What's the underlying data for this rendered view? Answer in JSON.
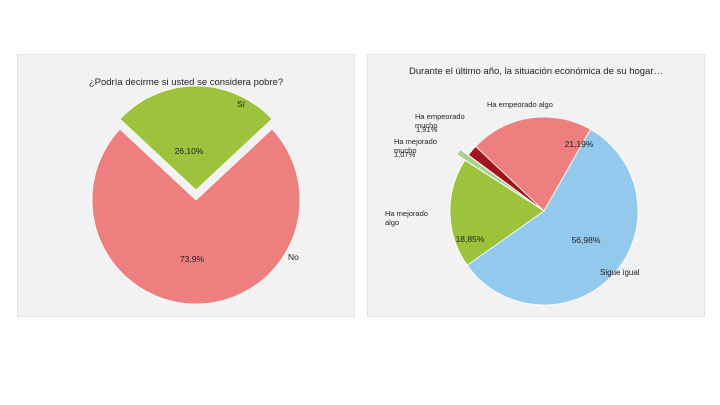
{
  "colors": {
    "panel_bg": "#f2f2f2",
    "green": "#9dc23c",
    "pink": "#ee7f7f",
    "blue": "#92c9ec",
    "dark_red": "#a3151c",
    "light_green": "#a9d18e"
  },
  "chart_data": [
    {
      "type": "pie",
      "title": "¿Podría decirme si usted se considera pobre?",
      "slices": [
        {
          "label": "Sí",
          "value_label": "26,10%",
          "value": 26.1,
          "color": "#9dc23c",
          "exploded": true
        },
        {
          "label": "No",
          "value_label": "73,9%",
          "value": 73.9,
          "color": "#ee7f7f",
          "exploded": false
        }
      ]
    },
    {
      "type": "pie",
      "title": "Durante el último año, la situación económica de su hogar…",
      "slices": [
        {
          "label": "Ha empeorado algo",
          "value_label": "21,19%",
          "value": 21.19,
          "color": "#ee7f7f"
        },
        {
          "label": "Sigue igual",
          "value_label": "56,98%",
          "value": 56.98,
          "color": "#92c9ec"
        },
        {
          "label": "Ha mejorado algo",
          "value_label": "18,85%",
          "value": 18.85,
          "color": "#9dc23c"
        },
        {
          "label": "Ha mejorado mucho",
          "value_label": "1,07%",
          "value": 1.07,
          "color": "#a9d18e"
        },
        {
          "label": "Ha empeorado mucho",
          "value_label": "1,91%",
          "value": 1.91,
          "color": "#a3151c"
        }
      ]
    }
  ]
}
